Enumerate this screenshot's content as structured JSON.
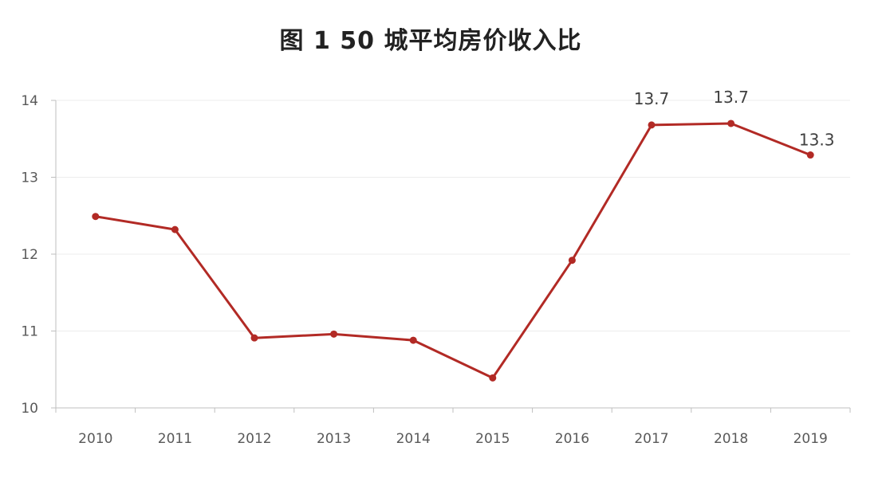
{
  "chart_data": {
    "type": "line",
    "title": "图 1   50 城平均房价收入比",
    "x": [
      "2010",
      "2011",
      "2012",
      "2013",
      "2014",
      "2015",
      "2016",
      "2017",
      "2018",
      "2019"
    ],
    "series": [
      {
        "values": [
          12.49,
          12.32,
          10.91,
          10.96,
          10.88,
          10.39,
          11.92,
          13.68,
          13.7,
          13.29
        ],
        "color": "#b22a25"
      }
    ],
    "data_labels": [
      {
        "x": "2017",
        "text": "13.7"
      },
      {
        "x": "2018",
        "text": "13.7"
      },
      {
        "x": "2019",
        "text": "13.3"
      }
    ],
    "ylim": [
      10,
      14
    ],
    "yticks": [
      "10",
      "11",
      "12",
      "13",
      "14"
    ],
    "xlabel": "",
    "ylabel": "",
    "grid": true,
    "legend": "none"
  }
}
